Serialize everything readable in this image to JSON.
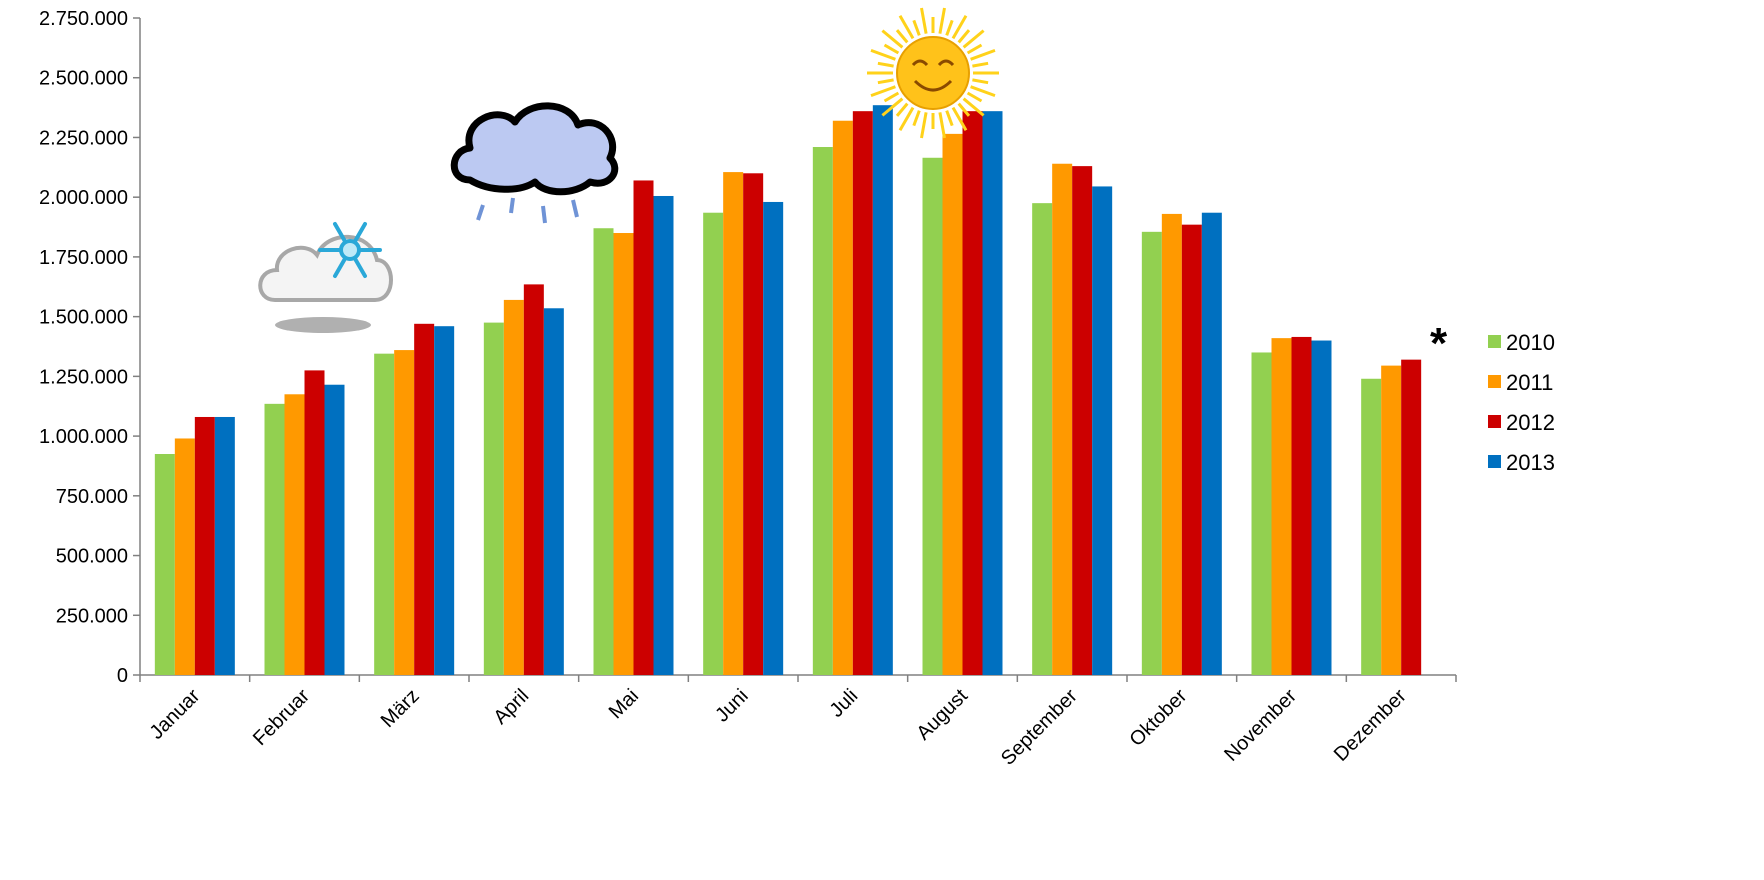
{
  "chart_data": {
    "type": "bar",
    "title": "",
    "xlabel": "",
    "ylabel": "",
    "ylim": [
      0,
      2750000
    ],
    "yticks": [
      0,
      250000,
      500000,
      750000,
      1000000,
      1250000,
      1500000,
      1750000,
      2000000,
      2250000,
      2500000,
      2750000
    ],
    "ytick_labels": [
      "0",
      "250.000",
      "500.000",
      "750.000",
      "1.000.000",
      "1.250.000",
      "1.500.000",
      "1.750.000",
      "2.000.000",
      "2.250.000",
      "2.500.000",
      "2.750.000"
    ],
    "categories": [
      "Januar",
      "Februar",
      "März",
      "April",
      "Mai",
      "Juni",
      "Juli",
      "August",
      "September",
      "Oktober",
      "November",
      "Dezember"
    ],
    "series": [
      {
        "name": "2010",
        "color": "#92D050",
        "values": [
          925000,
          1135000,
          1345000,
          1475000,
          1870000,
          1935000,
          2210000,
          2165000,
          1975000,
          1855000,
          1350000,
          1240000
        ]
      },
      {
        "name": "2011",
        "color": "#FF9900",
        "values": [
          990000,
          1175000,
          1360000,
          1570000,
          1850000,
          2105000,
          2320000,
          2265000,
          2140000,
          1930000,
          1410000,
          1295000
        ]
      },
      {
        "name": "2012",
        "color": "#CC0000",
        "values": [
          1080000,
          1275000,
          1470000,
          1635000,
          2070000,
          2100000,
          2360000,
          2360000,
          2130000,
          1885000,
          1415000,
          1320000
        ]
      },
      {
        "name": "2013",
        "color": "#0070C0",
        "values": [
          1080000,
          1215000,
          1460000,
          1535000,
          2005000,
          1980000,
          2385000,
          2360000,
          2045000,
          1935000,
          1400000,
          null
        ]
      }
    ],
    "legend_position": "right",
    "grid": false,
    "annotations": {
      "footnote_marker": "*",
      "weather_icons": [
        {
          "icon": "snow-cloud-icon",
          "near_category": "Februar"
        },
        {
          "icon": "rain-cloud-icon",
          "near_category": "April"
        },
        {
          "icon": "sun-icon",
          "near_category": "Juli"
        }
      ]
    }
  }
}
